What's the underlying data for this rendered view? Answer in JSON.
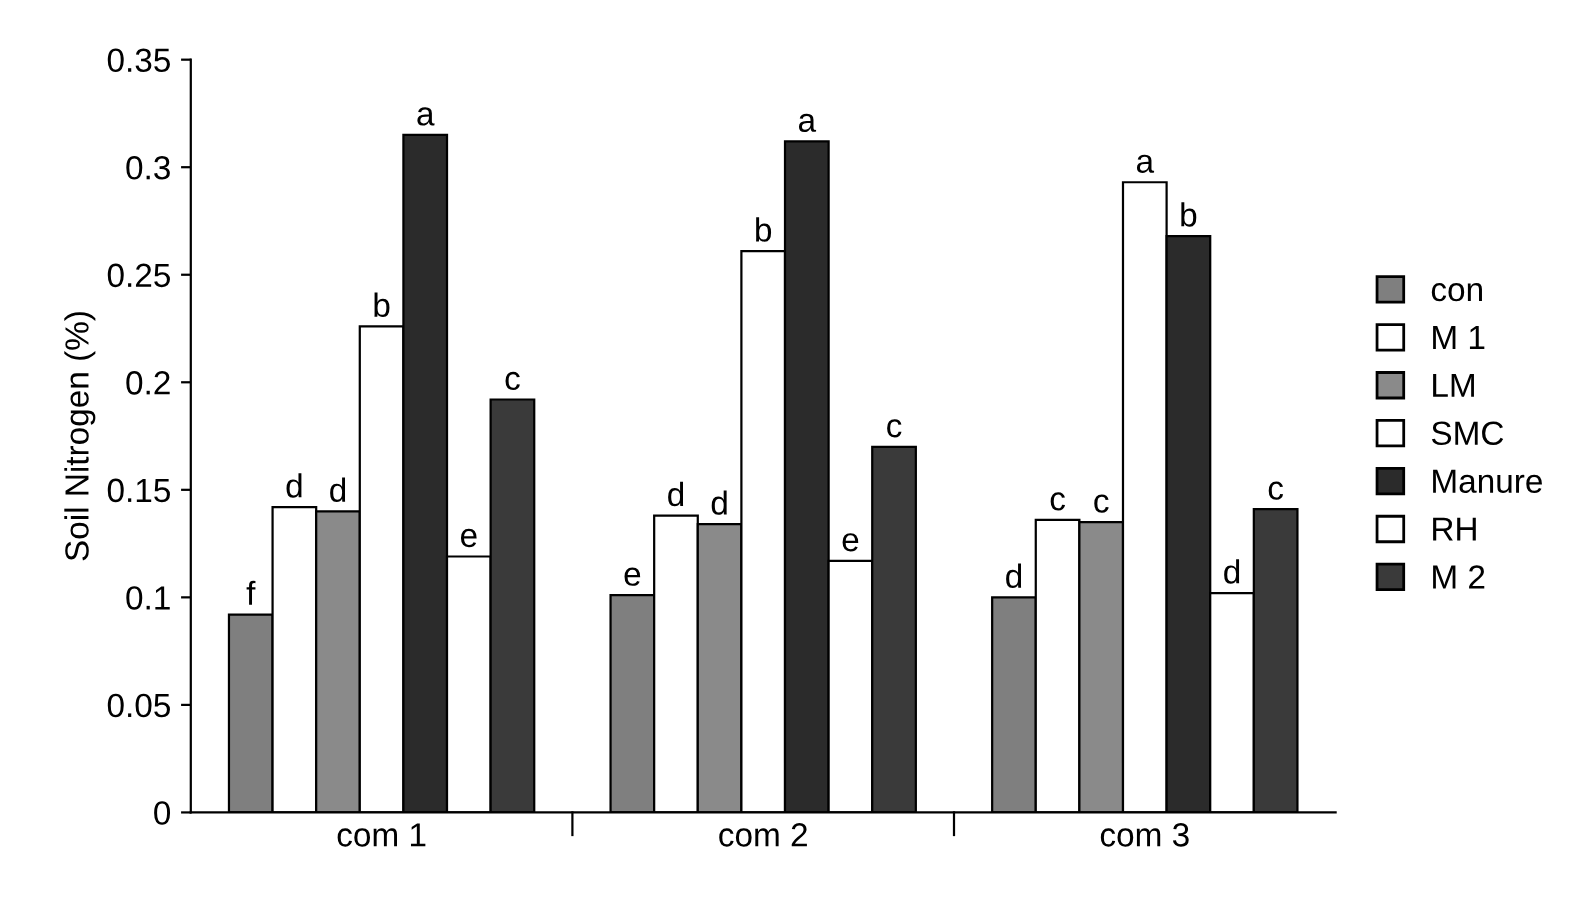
{
  "chart_data": {
    "type": "bar",
    "ylabel": "Soil Nitrogen (%)",
    "categories": [
      "com 1",
      "com 2",
      "com 3"
    ],
    "series": [
      {
        "name": "con",
        "color": "#7f7f7f",
        "values": [
          0.092,
          0.101,
          0.1
        ],
        "value_labels": [
          "f",
          "e",
          "d"
        ]
      },
      {
        "name": "M 1",
        "color": "#ffffff",
        "values": [
          0.142,
          0.138,
          0.136
        ],
        "value_labels": [
          "d",
          "d",
          "c"
        ]
      },
      {
        "name": "LM",
        "color": "#8a8a8a",
        "values": [
          0.14,
          0.134,
          0.135
        ],
        "value_labels": [
          "d",
          "d",
          "c"
        ]
      },
      {
        "name": "SMC",
        "color": "#ffffff",
        "values": [
          0.226,
          0.261,
          0.293
        ],
        "value_labels": [
          "b",
          "b",
          "a"
        ]
      },
      {
        "name": "Manure",
        "color": "#2b2b2b",
        "values": [
          0.315,
          0.312,
          0.268
        ],
        "value_labels": [
          "a",
          "a",
          "b"
        ]
      },
      {
        "name": "RH",
        "color": "#ffffff",
        "values": [
          0.119,
          0.117,
          0.102
        ],
        "value_labels": [
          "e",
          "e",
          "d"
        ]
      },
      {
        "name": "M 2",
        "color": "#3a3a3a",
        "values": [
          0.192,
          0.17,
          0.141
        ],
        "value_labels": [
          "c",
          "c",
          "c"
        ]
      }
    ],
    "ylim": [
      0,
      0.35
    ],
    "yticks": [
      {
        "value": 0,
        "label": "0"
      },
      0.05,
      0.1,
      0.15,
      0.2,
      0.25,
      0.3,
      0.35
    ],
    "grid": false,
    "legend": "right"
  }
}
